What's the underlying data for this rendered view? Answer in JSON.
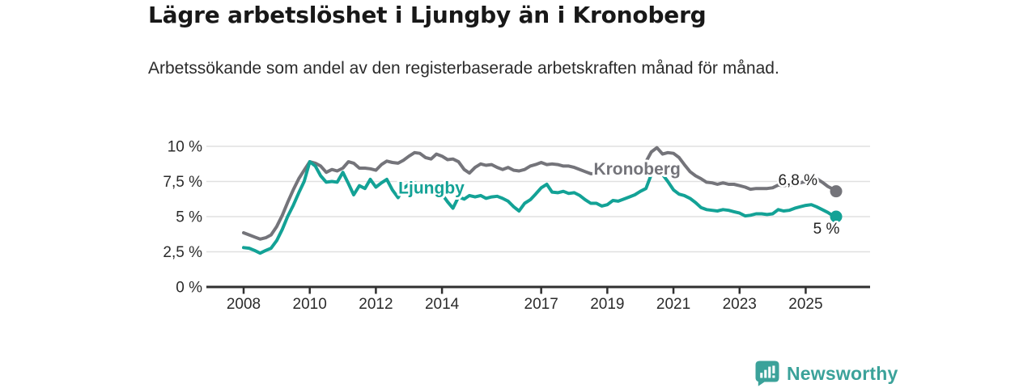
{
  "header": {
    "title": "Lägre arbetslöshet i Ljungby än i Kronoberg",
    "subtitle": "Arbetssökande som andel av den registerbaserade arbetskraften månad för månad."
  },
  "chart_data": {
    "type": "line",
    "title": "Lägre arbetslöshet i Ljungby än i Kronoberg",
    "subtitle": "Arbetssökande som andel av den registerbaserade arbetskraften månad för månad.",
    "xlabel": "",
    "ylabel": "",
    "y_unit": "%",
    "ylim": [
      0,
      10.6
    ],
    "xlim": [
      2006.9,
      2026.9
    ],
    "grid": "horizontal",
    "legend_position": "inline-labels",
    "y_ticks": [
      {
        "value": 0,
        "label": "0 %"
      },
      {
        "value": 2.5,
        "label": "2,5 %"
      },
      {
        "value": 5,
        "label": "5 %"
      },
      {
        "value": 7.5,
        "label": "7,5 %"
      },
      {
        "value": 10,
        "label": "10 %"
      }
    ],
    "x_ticks": [
      {
        "value": 2008,
        "label": "2008"
      },
      {
        "value": 2010,
        "label": "2010"
      },
      {
        "value": 2012,
        "label": "2012"
      },
      {
        "value": 2014,
        "label": "2014"
      },
      {
        "value": 2017,
        "label": "2017"
      },
      {
        "value": 2019,
        "label": "2019"
      },
      {
        "value": 2021,
        "label": "2021"
      },
      {
        "value": 2023,
        "label": "2023"
      },
      {
        "value": 2025,
        "label": "2025"
      }
    ],
    "x": [
      2008,
      2008.17,
      2008.33,
      2008.5,
      2008.67,
      2008.83,
      2009,
      2009.17,
      2009.33,
      2009.5,
      2009.67,
      2009.83,
      2010,
      2010.17,
      2010.33,
      2010.5,
      2010.67,
      2010.83,
      2011,
      2011.17,
      2011.33,
      2011.5,
      2011.67,
      2011.83,
      2012,
      2012.17,
      2012.33,
      2012.5,
      2012.67,
      2012.83,
      2013,
      2013.17,
      2013.33,
      2013.5,
      2013.67,
      2013.83,
      2014,
      2014.17,
      2014.33,
      2014.5,
      2014.67,
      2014.83,
      2015,
      2015.17,
      2015.33,
      2015.5,
      2015.67,
      2015.83,
      2016,
      2016.17,
      2016.33,
      2016.5,
      2016.67,
      2016.83,
      2017,
      2017.17,
      2017.33,
      2017.5,
      2017.67,
      2017.83,
      2018,
      2018.17,
      2018.33,
      2018.5,
      2018.67,
      2018.83,
      2019,
      2019.17,
      2019.33,
      2019.5,
      2019.67,
      2019.83,
      2020,
      2020.17,
      2020.33,
      2020.5,
      2020.67,
      2020.83,
      2021,
      2021.17,
      2021.33,
      2021.5,
      2021.67,
      2021.83,
      2022,
      2022.17,
      2022.33,
      2022.5,
      2022.67,
      2022.83,
      2023,
      2023.17,
      2023.33,
      2023.5,
      2023.67,
      2023.83,
      2024,
      2024.17,
      2024.33,
      2024.5,
      2024.67,
      2024.83,
      2025,
      2025.17,
      2025.33,
      2025.5,
      2025.67,
      2025.83,
      2025.92
    ],
    "series": [
      {
        "name": "Kronoberg",
        "color": "#74747a",
        "end_label": "6,8 %",
        "end_value": 6.8,
        "inline_label": {
          "x": 2019.9,
          "y": 8.0,
          "anchor": "middle"
        },
        "values": [
          3.85,
          3.7,
          3.55,
          3.4,
          3.5,
          3.7,
          4.3,
          5.1,
          6.0,
          6.9,
          7.7,
          8.3,
          8.9,
          8.8,
          8.6,
          8.15,
          8.35,
          8.25,
          8.45,
          8.9,
          8.8,
          8.45,
          8.45,
          8.4,
          8.3,
          8.7,
          8.95,
          8.85,
          8.8,
          9.0,
          9.3,
          9.55,
          9.5,
          9.2,
          9.1,
          9.45,
          9.3,
          9.05,
          9.1,
          8.9,
          8.35,
          8.1,
          8.5,
          8.75,
          8.65,
          8.7,
          8.5,
          8.35,
          8.5,
          8.3,
          8.25,
          8.35,
          8.6,
          8.7,
          8.85,
          8.7,
          8.75,
          8.7,
          8.6,
          8.6,
          8.5,
          8.35,
          8.2,
          8.05,
          8.05,
          8.15,
          8.25,
          8.25,
          8.25,
          8.15,
          8.25,
          8.3,
          8.35,
          8.9,
          9.6,
          9.9,
          9.45,
          9.55,
          9.5,
          9.2,
          8.7,
          8.2,
          7.9,
          7.7,
          7.45,
          7.4,
          7.3,
          7.4,
          7.3,
          7.3,
          7.2,
          7.1,
          6.95,
          7.0,
          7.0,
          7.0,
          7.05,
          7.25,
          7.2,
          7.25,
          7.25,
          7.4,
          7.5,
          7.7,
          7.7,
          7.45,
          7.15,
          6.95,
          6.8
        ]
      },
      {
        "name": "Ljungby",
        "color": "#13a296",
        "end_label": "5 %",
        "end_value": 5.0,
        "inline_label": {
          "x": 2012.68,
          "y": 6.65,
          "anchor": "start"
        },
        "values": [
          2.8,
          2.75,
          2.6,
          2.4,
          2.6,
          2.75,
          3.3,
          4.1,
          5.0,
          5.8,
          6.7,
          7.5,
          8.9,
          8.6,
          7.9,
          7.45,
          7.5,
          7.45,
          8.15,
          7.35,
          6.55,
          7.2,
          7.0,
          7.65,
          7.1,
          7.4,
          7.65,
          6.9,
          6.35,
          7.0,
          7.3,
          7.4,
          7.25,
          7.1,
          7.15,
          6.9,
          6.6,
          6.05,
          5.6,
          6.4,
          6.25,
          6.5,
          6.4,
          6.5,
          6.3,
          6.4,
          6.45,
          6.3,
          6.1,
          5.7,
          5.4,
          5.95,
          6.2,
          6.6,
          7.05,
          7.3,
          6.75,
          6.7,
          6.8,
          6.65,
          6.7,
          6.5,
          6.2,
          5.95,
          5.95,
          5.75,
          5.85,
          6.15,
          6.1,
          6.25,
          6.4,
          6.55,
          6.8,
          7.0,
          8.0,
          8.55,
          8.0,
          7.5,
          6.9,
          6.6,
          6.5,
          6.3,
          6.0,
          5.65,
          5.5,
          5.45,
          5.4,
          5.5,
          5.45,
          5.35,
          5.25,
          5.05,
          5.1,
          5.2,
          5.2,
          5.15,
          5.2,
          5.5,
          5.4,
          5.45,
          5.6,
          5.7,
          5.8,
          5.85,
          5.7,
          5.5,
          5.3,
          5.05,
          5.0
        ]
      }
    ]
  },
  "colors": {
    "kronoberg": "#74747a",
    "ljungby": "#13a296",
    "axis": "#303030",
    "grid": "#e0e0e0",
    "label_text": "#222222",
    "brand_teal": "#3ba29a"
  },
  "footer": {
    "brand": "Newsworthy",
    "logo_icon": "newsworthy-chart-bubble-icon"
  }
}
